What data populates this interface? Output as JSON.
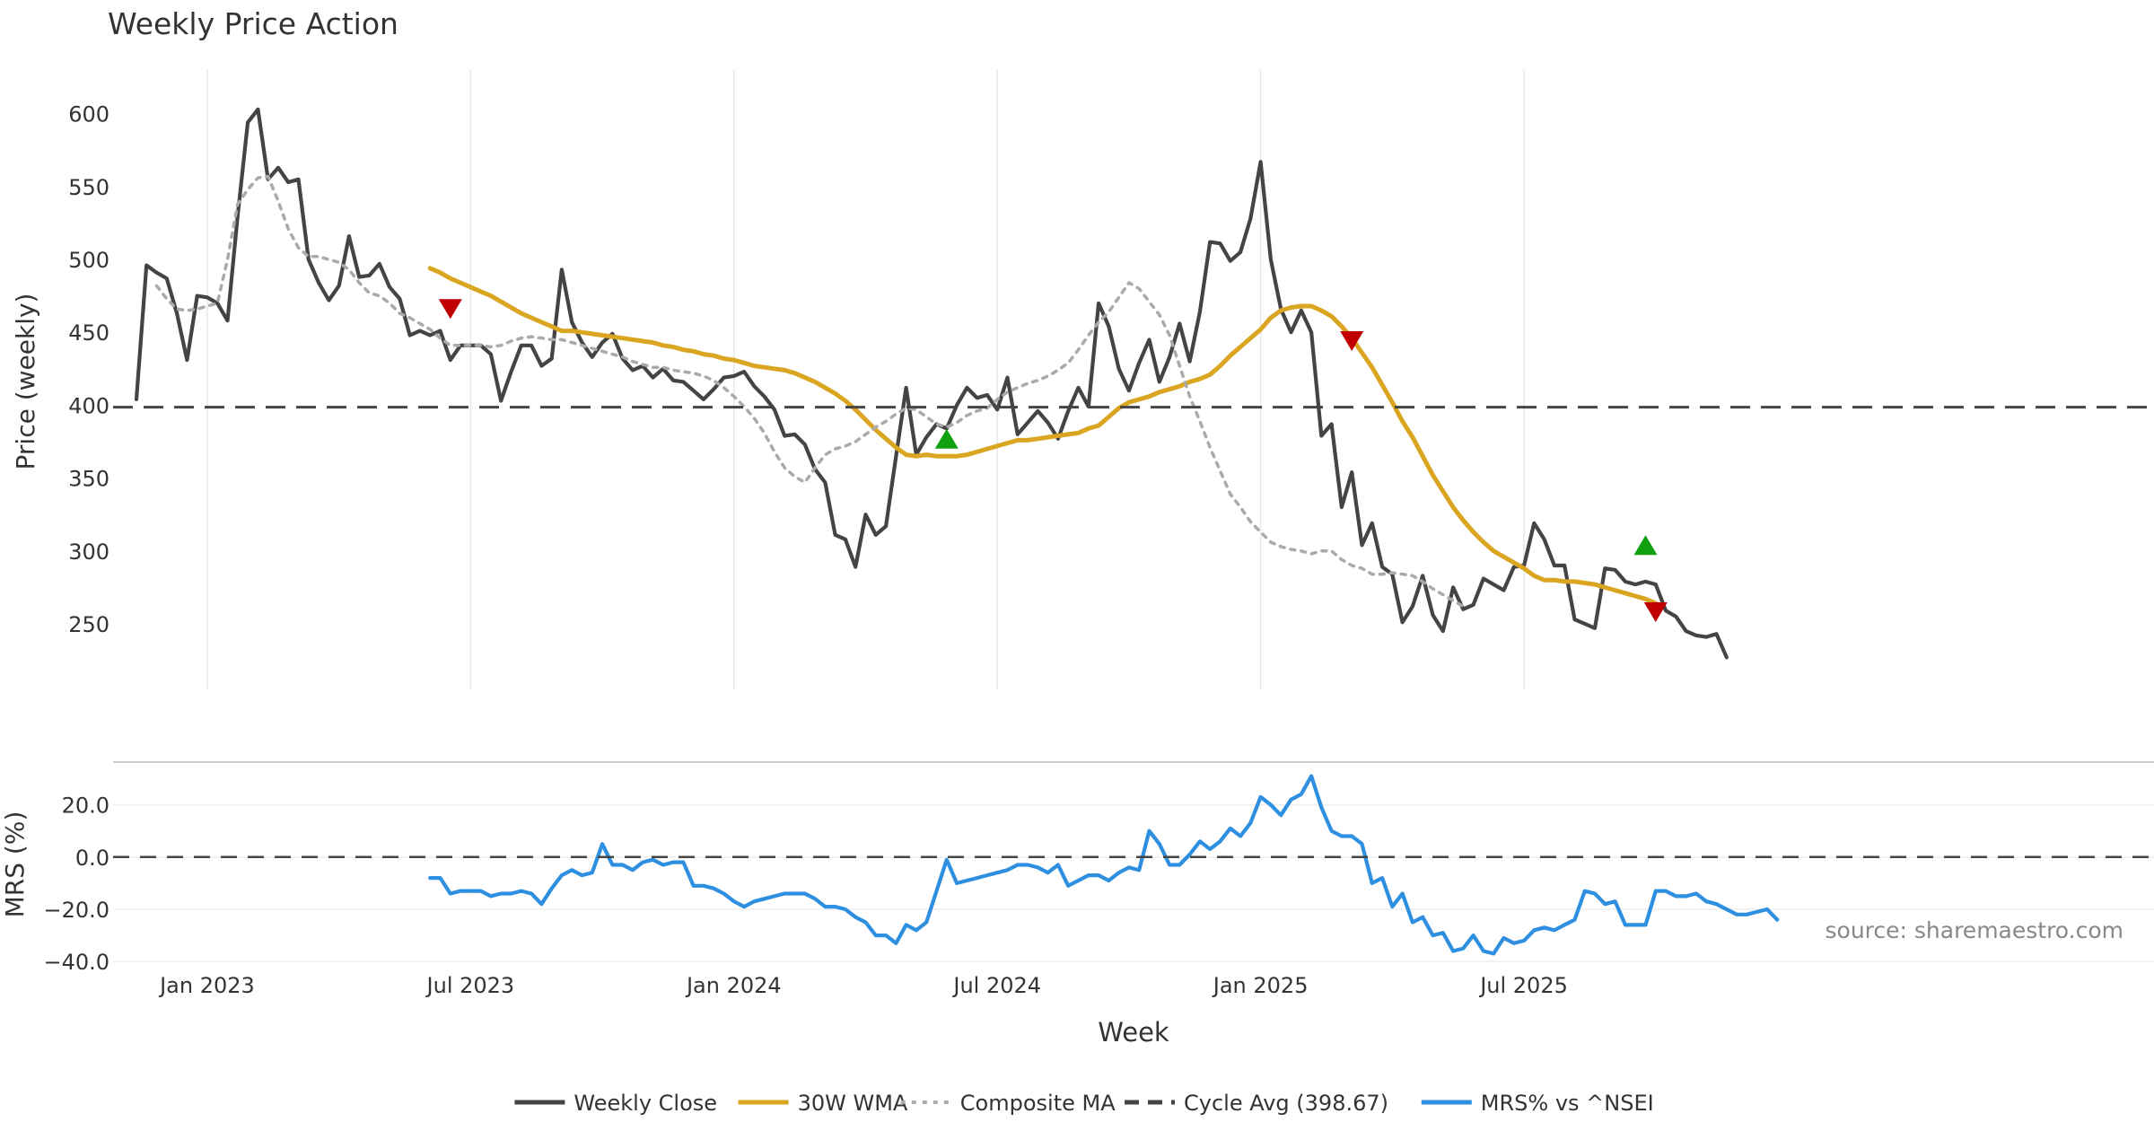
{
  "chart_data": [
    {
      "type": "line",
      "title": "Weekly Price Action",
      "xlabel": "",
      "ylabel": "Price (weekly)",
      "ylim": [
        205,
        630
      ],
      "yticks": [
        250,
        300,
        350,
        400,
        450,
        500,
        550,
        600
      ],
      "xlim": [
        -9.3,
        192.2
      ],
      "xticks": [
        {
          "label": "Jan 2023",
          "week": 0
        },
        {
          "label": "Jul 2023",
          "week": 26
        },
        {
          "label": "Jan 2024",
          "week": 52
        },
        {
          "label": "Jul 2024",
          "week": 78
        },
        {
          "label": "Jan 2025",
          "week": 104
        },
        {
          "label": "Jul 2025",
          "week": 130
        }
      ],
      "grid": "vertical",
      "series": [
        {
          "name": "Weekly Close",
          "color": "#444444",
          "style": "solid",
          "start_week": -7,
          "values": [
            404,
            496,
            491,
            487,
            463,
            431,
            475,
            474,
            470,
            458,
            530,
            594,
            603,
            555,
            563,
            553,
            555,
            500,
            484,
            472,
            482,
            516,
            488,
            489,
            497,
            481,
            473,
            448,
            451,
            448,
            451,
            431,
            441,
            441,
            441,
            435,
            403,
            423,
            441,
            441,
            427,
            432,
            493,
            457,
            443,
            433,
            443,
            449,
            432,
            424,
            427,
            419,
            425,
            417,
            416,
            410,
            404,
            411,
            419,
            420,
            423,
            413,
            406,
            397,
            379,
            380,
            373,
            356,
            347,
            311,
            308,
            289,
            325,
            311,
            317,
            365,
            412,
            366,
            378,
            387,
            384,
            400,
            412,
            405,
            407,
            397,
            419,
            380,
            388,
            396,
            388,
            377,
            396,
            412,
            399,
            470,
            454,
            425,
            410,
            429,
            445,
            416,
            433,
            456,
            430,
            464,
            512,
            511,
            499,
            505,
            528,
            567,
            500,
            466,
            450,
            465,
            450,
            379,
            387,
            330,
            354,
            304,
            319,
            289,
            284,
            251,
            262,
            283,
            256,
            245,
            275,
            260,
            263,
            281,
            277,
            273,
            289,
            290,
            319,
            308,
            290,
            290,
            253,
            250,
            247,
            288,
            287,
            279,
            277,
            279,
            277,
            259,
            255,
            245,
            242,
            241,
            243,
            227
          ]
        },
        {
          "name": "30W WMA",
          "color": "#DAA520",
          "style": "solid",
          "start_week": 22,
          "values": [
            494,
            491,
            487,
            484,
            481,
            478,
            475,
            471,
            467,
            463,
            460,
            457,
            454,
            451,
            451,
            450,
            449,
            448,
            447,
            446,
            445,
            444,
            443,
            441,
            440,
            438,
            437,
            435,
            434,
            432,
            431,
            429,
            427,
            426,
            425,
            424,
            422,
            419,
            416,
            412,
            408,
            403,
            397,
            390,
            383,
            377,
            371,
            366,
            365,
            366,
            365,
            365,
            365,
            366,
            368,
            370,
            372,
            374,
            376,
            376,
            377,
            378,
            379,
            380,
            381,
            384,
            386,
            392,
            398,
            402,
            404,
            406,
            409,
            411,
            413,
            416,
            418,
            421,
            427,
            434,
            440,
            446,
            452,
            460,
            465,
            467,
            468,
            468,
            465,
            461,
            454,
            446,
            436,
            426,
            414,
            402,
            389,
            378,
            365,
            352,
            341,
            330,
            321,
            313,
            306,
            300,
            296,
            292,
            288,
            283,
            280,
            280,
            279,
            279,
            278,
            277,
            275,
            273,
            271,
            269,
            267,
            264
          ]
        },
        {
          "name": "Composite MA",
          "color": "#AAAAAA",
          "style": "dotted",
          "start_week": -5,
          "values": [
            482,
            473,
            466,
            465,
            466,
            468,
            470,
            500,
            538,
            548,
            556,
            557,
            540,
            521,
            508,
            502,
            502,
            500,
            498,
            493,
            484,
            477,
            475,
            470,
            463,
            460,
            456,
            452,
            446,
            441,
            441,
            441,
            441,
            440,
            441,
            444,
            446,
            447,
            446,
            445,
            445,
            443,
            441,
            439,
            437,
            435,
            433,
            430,
            428,
            426,
            426,
            424,
            423,
            422,
            420,
            417,
            412,
            406,
            399,
            391,
            381,
            368,
            357,
            351,
            347,
            357,
            366,
            370,
            372,
            375,
            380,
            385,
            389,
            394,
            398,
            397,
            392,
            387,
            385,
            388,
            393,
            396,
            398,
            404,
            409,
            412,
            415,
            417,
            420,
            424,
            429,
            438,
            448,
            457,
            464,
            474,
            484,
            480,
            471,
            462,
            448,
            427,
            406,
            389,
            371,
            355,
            339,
            330,
            320,
            313,
            306,
            303,
            301,
            300,
            298,
            300,
            300,
            294,
            290,
            288,
            284,
            284,
            285,
            284,
            283,
            279,
            274,
            270,
            266,
            262
          ]
        },
        {
          "name": "Cycle Avg (398.67)",
          "color": "#444444",
          "style": "dashed",
          "constant": 398.67
        }
      ],
      "markers": [
        {
          "type": "sell",
          "color": "#C00000",
          "week": 24,
          "value": 466
        },
        {
          "type": "buy",
          "color": "#10A010",
          "week": 73,
          "value": 377
        },
        {
          "type": "sell",
          "color": "#C00000",
          "week": 113,
          "value": 444
        },
        {
          "type": "buy",
          "color": "#10A010",
          "week": 142,
          "value": 304
        },
        {
          "type": "sell",
          "color": "#C00000",
          "week": 143,
          "value": 258
        }
      ],
      "annotations": []
    },
    {
      "type": "line",
      "title": "",
      "xlabel": "Week",
      "ylabel": "MRS (%)",
      "ylim": [
        -42,
        36
      ],
      "yticks": [
        {
          "label": "−40.0",
          "value": -40
        },
        {
          "label": "−20.0",
          "value": -20
        },
        {
          "label": "0.0",
          "value": 0
        },
        {
          "label": "20.0",
          "value": 20
        }
      ],
      "series": [
        {
          "name": "MRS% vs ^NSEI",
          "color": "#2E8FE0",
          "style": "solid",
          "start_week": 22,
          "values": [
            -8,
            -8,
            -14,
            -13,
            -13,
            -13,
            -15,
            -14,
            -14,
            -13,
            -14,
            -18,
            -12,
            -7,
            -5,
            -7,
            -6,
            5,
            -3,
            -3,
            -5,
            -2,
            -1,
            -3,
            -2,
            -2,
            -11,
            -11,
            -12,
            -14,
            -17,
            -19,
            -17,
            -16,
            -15,
            -14,
            -14,
            -14,
            -16,
            -19,
            -19,
            -20,
            -23,
            -25,
            -30,
            -30,
            -33,
            -26,
            -28,
            -25,
            -13,
            -1,
            -10,
            -9,
            -8,
            -7,
            -6,
            -5,
            -3,
            -3,
            -4,
            -6,
            -3,
            -11,
            -9,
            -7,
            -7,
            -9,
            -6,
            -4,
            -5,
            10,
            5,
            -3,
            -3,
            1,
            6,
            3,
            6,
            11,
            8,
            13,
            23,
            20,
            16,
            22,
            24,
            31,
            19,
            10,
            8,
            8,
            5,
            -10,
            -8,
            -19,
            -14,
            -25,
            -23,
            -30,
            -29,
            -36,
            -35,
            -30,
            -36,
            -37,
            -31,
            -33,
            -32,
            -28,
            -27,
            -28,
            -26,
            -24,
            -13,
            -14,
            -18,
            -17,
            -26,
            -26,
            -26,
            -13,
            -13,
            -15,
            -15,
            -14,
            -17,
            -18,
            -20,
            -22,
            -22,
            -21,
            -20,
            -24
          ]
        },
        {
          "name": "zero",
          "color": "#444444",
          "style": "dashed",
          "constant": 0
        }
      ]
    }
  ],
  "legend": {
    "placement": "bottom-center",
    "entries": [
      {
        "label": "Weekly Close",
        "color": "#444444",
        "style": "solid"
      },
      {
        "label": "30W WMA",
        "color": "#DAA520",
        "style": "solid"
      },
      {
        "label": "Composite MA",
        "color": "#AAAAAA",
        "style": "dotted"
      },
      {
        "label": "Cycle Avg (398.67)",
        "color": "#444444",
        "style": "dashed"
      },
      {
        "label": "MRS% vs ^NSEI",
        "color": "#2E8FE0",
        "style": "solid"
      }
    ]
  },
  "source_text": "source: sharemaestro.com"
}
